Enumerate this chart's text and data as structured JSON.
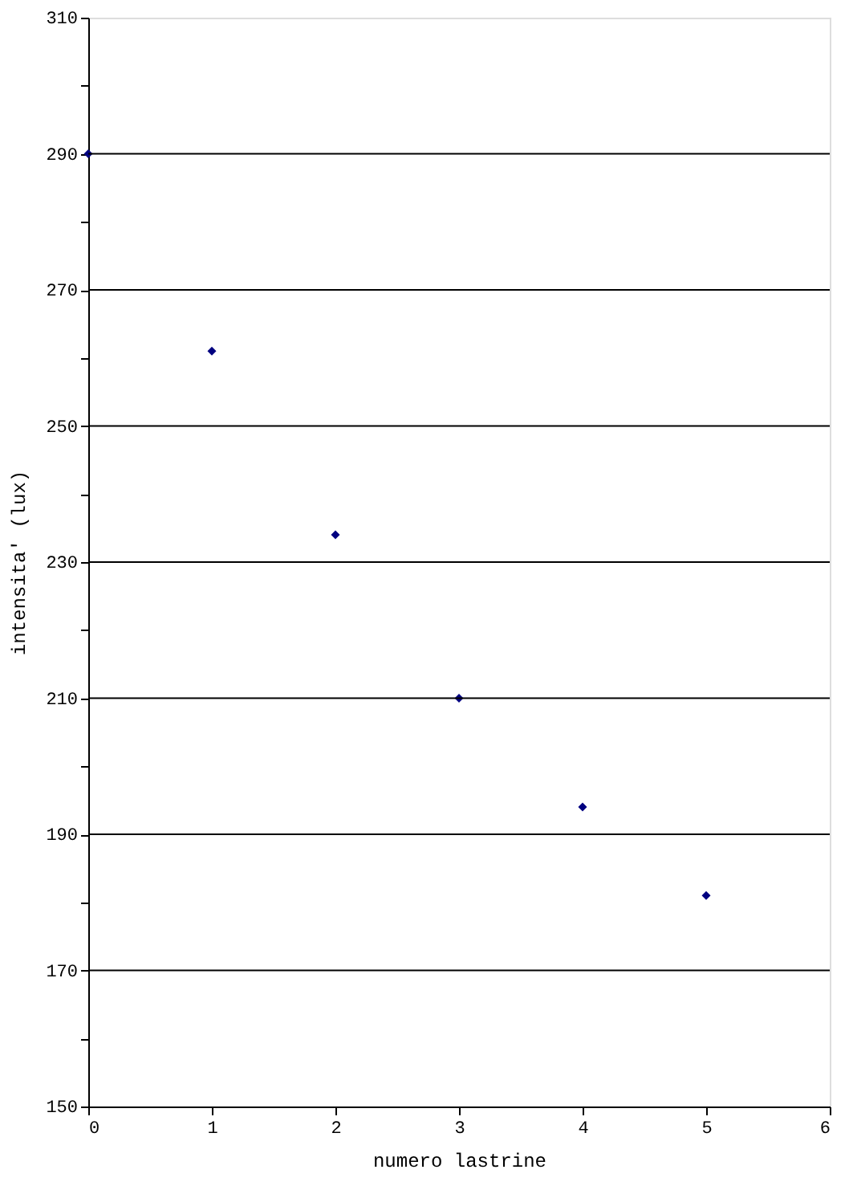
{
  "chart_data": {
    "type": "scatter",
    "xlabel": "numero lastrine",
    "ylabel": "intensita' (lux)",
    "x": [
      0,
      1,
      2,
      3,
      4,
      5
    ],
    "series": [
      {
        "color": "#000080",
        "values": [
          290,
          261,
          234,
          210,
          194,
          181
        ]
      }
    ],
    "xlim": [
      0,
      6
    ],
    "xticks": [
      0,
      1,
      2,
      3,
      4,
      5,
      6
    ],
    "ylim": [
      150,
      310
    ],
    "yticks": [
      150,
      {
        "value": 160,
        "label": null
      },
      170,
      {
        "value": 180,
        "label": null
      },
      190,
      {
        "value": 200,
        "label": null
      },
      210,
      {
        "value": 220,
        "label": null
      },
      230,
      {
        "value": 240,
        "label": null
      },
      250,
      {
        "value": 260,
        "label": null
      },
      270,
      {
        "value": 280,
        "label": null
      },
      290,
      {
        "value": 300,
        "label": null
      },
      310
    ],
    "grid": "y",
    "marker": "diamond",
    "legend": false
  }
}
